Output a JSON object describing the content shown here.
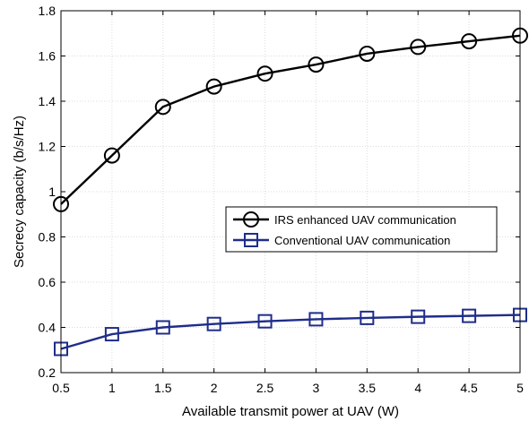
{
  "chart_data": {
    "type": "line",
    "xlabel": "Available transmit power at UAV (W)",
    "ylabel": "Secrecy capacity (b/s/Hz)",
    "xlim": [
      0.5,
      5
    ],
    "ylim": [
      0.2,
      1.8
    ],
    "xticks": [
      "0.5",
      "1",
      "1.5",
      "2",
      "2.5",
      "3",
      "3.5",
      "4",
      "4.5",
      "5"
    ],
    "yticks": [
      "0.2",
      "0.4",
      "0.6",
      "0.8",
      "1",
      "1.2",
      "1.4",
      "1.6",
      "1.8"
    ],
    "grid": true,
    "legend_position": "center-right",
    "x": [
      0.5,
      1,
      1.5,
      2,
      2.5,
      3,
      3.5,
      4,
      4.5,
      5
    ],
    "series": [
      {
        "name": "IRS enhanced UAV communication",
        "marker": "circle",
        "color": "#000000",
        "values": [
          0.945,
          1.16,
          1.375,
          1.465,
          1.522,
          1.562,
          1.61,
          1.64,
          1.665,
          1.69
        ]
      },
      {
        "name": "Conventional UAV communication",
        "marker": "square",
        "color": "#1f2d8a",
        "values": [
          0.305,
          0.37,
          0.4,
          0.415,
          0.427,
          0.436,
          0.442,
          0.447,
          0.451,
          0.455
        ]
      }
    ]
  }
}
